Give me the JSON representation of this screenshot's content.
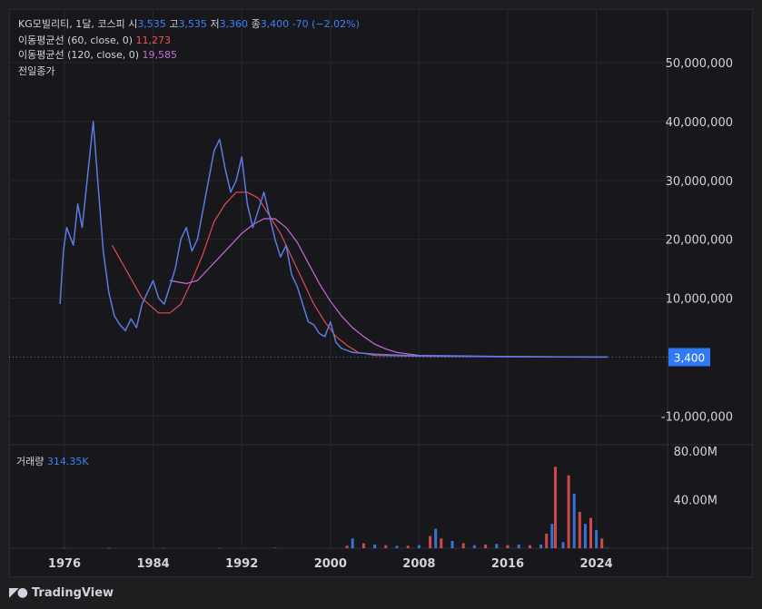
{
  "legend": {
    "symbol": "KG모빌리티, 1달, 코스피",
    "open_label": "시",
    "open": "3,535",
    "high_label": "고",
    "high": "3,535",
    "low_label": "저",
    "low": "3,360",
    "close_label": "종",
    "close": "3,400",
    "change": "-70 (−2.02%)",
    "ma60_label": "이동평균선 (60, close, 0)",
    "ma60_value": "11,273",
    "ma120_label": "이동평균선 (120, close, 0)",
    "ma120_value": "19,585",
    "prev_close_label": "전일종가"
  },
  "volume_legend": {
    "label": "거래량",
    "value": "314.35K"
  },
  "brand": {
    "name": "TradingView"
  },
  "colors": {
    "up": "#3b82f6",
    "down": "#ef5350",
    "ma60": "#e24a57",
    "ma120": "#c86bd8",
    "price_tag": "#3179f5",
    "grid": "#26272e",
    "text": "#d1d4dc"
  },
  "chart_data": [
    {
      "type": "line",
      "title": "KG모빌리티, 1달, 코스피",
      "xlabel": "",
      "ylabel": "",
      "x_ticks": [
        "1976",
        "1984",
        "1992",
        "2000",
        "2008",
        "2016",
        "2024"
      ],
      "y_ticks": [
        "50,000,000",
        "40,000,000",
        "30,000,000",
        "20,000,000",
        "10,000,000",
        "-10,000,000"
      ],
      "ylim": [
        -15000000,
        57000000
      ],
      "last_price_tag": "3,400",
      "last_price": 3400,
      "series": [
        {
          "name": "이동평균선 (60, close, 0)",
          "color": "#e24a57",
          "points": [
            [
              1980.3,
              19000000
            ],
            [
              1981.5,
              15000000
            ],
            [
              1983,
              10000000
            ],
            [
              1984.5,
              7500000
            ],
            [
              1985.5,
              7500000
            ],
            [
              1986.5,
              9000000
            ],
            [
              1987.5,
              13000000
            ],
            [
              1988.5,
              17500000
            ],
            [
              1989.5,
              23000000
            ],
            [
              1990.5,
              26000000
            ],
            [
              1991.5,
              28000000
            ],
            [
              1992.5,
              28000000
            ],
            [
              1993.5,
              27000000
            ],
            [
              1994.5,
              24000000
            ],
            [
              1995.5,
              21000000
            ],
            [
              1996.5,
              17000000
            ],
            [
              1997.5,
              13000000
            ],
            [
              1998.5,
              9000000
            ],
            [
              1999.5,
              6000000
            ],
            [
              2000.5,
              3500000
            ],
            [
              2001.5,
              2000000
            ],
            [
              2002.5,
              800000
            ],
            [
              2004,
              300000
            ],
            [
              2008,
              150000
            ],
            [
              2016,
              80000
            ],
            [
              2025,
              11273
            ]
          ]
        },
        {
          "name": "이동평균선 (120, close, 0)",
          "color": "#c86bd8",
          "points": [
            [
              1985.5,
              13000000
            ],
            [
              1987,
              12500000
            ],
            [
              1988,
              13000000
            ],
            [
              1989,
              15000000
            ],
            [
              1990,
              17000000
            ],
            [
              1991,
              19000000
            ],
            [
              1992,
              21000000
            ],
            [
              1993,
              22500000
            ],
            [
              1994,
              23500000
            ],
            [
              1995,
              23500000
            ],
            [
              1996,
              22000000
            ],
            [
              1997,
              19500000
            ],
            [
              1998,
              16000000
            ],
            [
              1999,
              12500000
            ],
            [
              2000,
              9500000
            ],
            [
              2001,
              7000000
            ],
            [
              2002,
              5000000
            ],
            [
              2003,
              3500000
            ],
            [
              2004,
              2200000
            ],
            [
              2005,
              1400000
            ],
            [
              2006,
              800000
            ],
            [
              2008,
              300000
            ],
            [
              2016,
              120000
            ],
            [
              2025,
              19585
            ]
          ]
        },
        {
          "name": "",
          "color": "#5b7be0",
          "points": [
            [
              1975.6,
              9000000
            ],
            [
              1975.9,
              18000000
            ],
            [
              1976.2,
              22000000
            ],
            [
              1976.8,
              19000000
            ],
            [
              1977.2,
              26000000
            ],
            [
              1977.6,
              22000000
            ],
            [
              1978.1,
              31000000
            ],
            [
              1978.6,
              40000000
            ],
            [
              1979.0,
              30000000
            ],
            [
              1979.5,
              18000000
            ],
            [
              1980.0,
              11000000
            ],
            [
              1980.5,
              7000000
            ],
            [
              1981.0,
              5500000
            ],
            [
              1981.5,
              4500000
            ],
            [
              1982.0,
              6500000
            ],
            [
              1982.5,
              5000000
            ],
            [
              1983.0,
              9000000
            ],
            [
              1983.5,
              11000000
            ],
            [
              1984.0,
              13000000
            ],
            [
              1984.5,
              10000000
            ],
            [
              1985.0,
              9000000
            ],
            [
              1985.5,
              12000000
            ],
            [
              1986.0,
              15000000
            ],
            [
              1986.5,
              20000000
            ],
            [
              1987.0,
              22000000
            ],
            [
              1987.5,
              18000000
            ],
            [
              1988.0,
              20000000
            ],
            [
              1988.5,
              25000000
            ],
            [
              1989.0,
              30000000
            ],
            [
              1989.5,
              35000000
            ],
            [
              1990.0,
              37000000
            ],
            [
              1990.5,
              32000000
            ],
            [
              1991.0,
              28000000
            ],
            [
              1991.5,
              30000000
            ],
            [
              1992.0,
              34000000
            ],
            [
              1992.5,
              26000000
            ],
            [
              1993.0,
              22000000
            ],
            [
              1993.5,
              25000000
            ],
            [
              1994.0,
              28000000
            ],
            [
              1994.5,
              24000000
            ],
            [
              1995.0,
              20000000
            ],
            [
              1995.5,
              17000000
            ],
            [
              1996.0,
              19000000
            ],
            [
              1996.5,
              14000000
            ],
            [
              1997.0,
              12000000
            ],
            [
              1997.5,
              9000000
            ],
            [
              1998.0,
              6000000
            ],
            [
              1998.5,
              5500000
            ],
            [
              1999.0,
              4000000
            ],
            [
              1999.5,
              3500000
            ],
            [
              2000.0,
              6000000
            ],
            [
              2000.5,
              2500000
            ],
            [
              2001.0,
              1500000
            ],
            [
              2002.0,
              800000
            ],
            [
              2004,
              500000
            ],
            [
              2008,
              200000
            ],
            [
              2016,
              80000
            ],
            [
              2025,
              3400
            ]
          ]
        }
      ]
    },
    {
      "type": "bar",
      "title": "거래량",
      "y_ticks": [
        "80.00M",
        "40.00M"
      ],
      "ylim": [
        0,
        80000000
      ],
      "last_value": "314.35K",
      "x": [
        1976,
        1980,
        1985,
        1990,
        1995,
        2001.5,
        2002,
        2003,
        2004,
        2005,
        2006,
        2007,
        2008,
        2009,
        2009.5,
        2010,
        2011,
        2012,
        2013,
        2014,
        2015,
        2016,
        2017,
        2018,
        2019,
        2019.5,
        2020,
        2020.3,
        2021,
        2021.5,
        2022,
        2022.5,
        2023,
        2023.5,
        2024,
        2024.5,
        2025
      ],
      "values": [
        300000,
        400000,
        300000,
        300000,
        400000,
        2000000,
        8000000,
        4000000,
        3000000,
        2500000,
        2000000,
        2000000,
        2500000,
        10000000,
        16000000,
        8000000,
        6000000,
        4000000,
        2500000,
        3000000,
        3500000,
        2500000,
        3000000,
        2500000,
        3000000,
        12000000,
        20000000,
        67000000,
        5000000,
        60000000,
        45000000,
        30000000,
        20000000,
        25000000,
        15000000,
        8000000,
        314350
      ]
    }
  ]
}
